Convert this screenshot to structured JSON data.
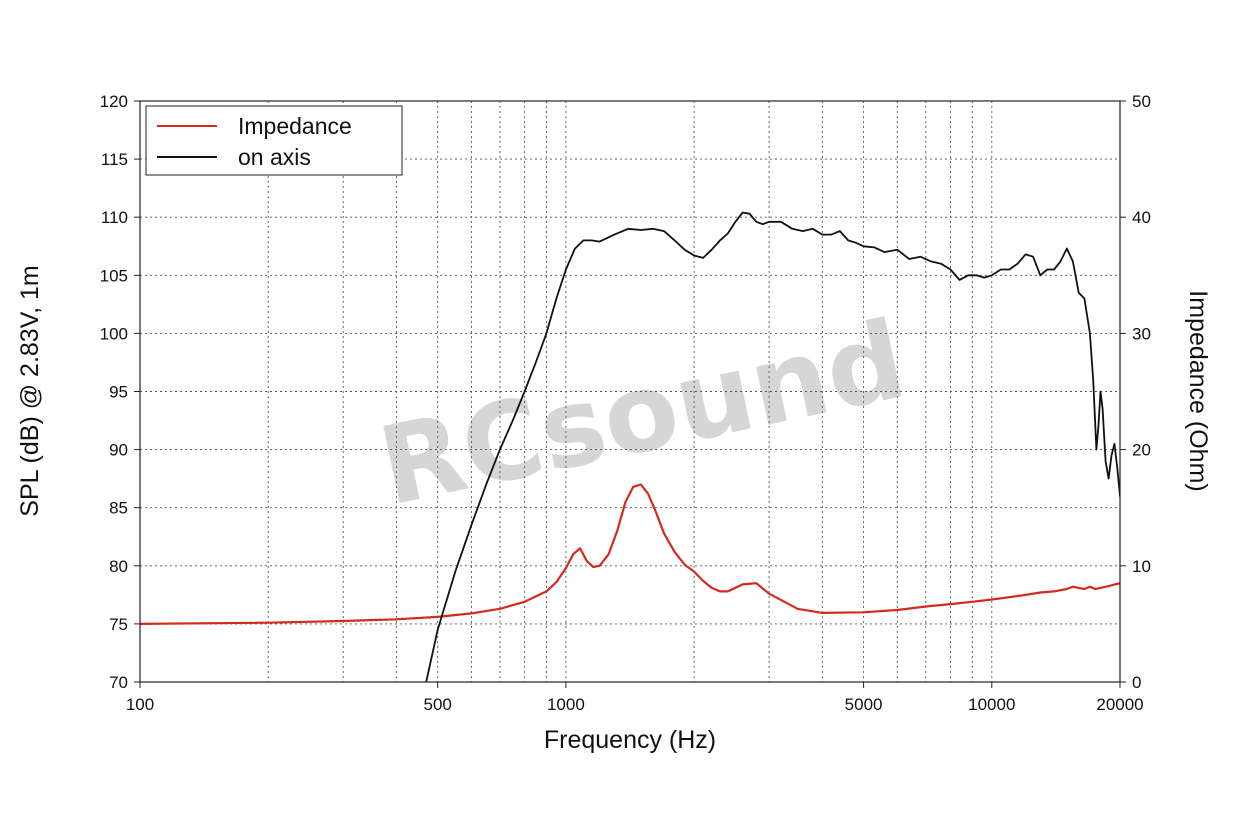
{
  "chart_data": {
    "type": "line",
    "xlabel": "Frequency (Hz)",
    "ylabel": "SPL (dB) @ 2.83V, 1m",
    "y2label": "Impedance (Ohm)",
    "x_scale": "log",
    "xlim": [
      100,
      20000
    ],
    "ylim": [
      70,
      120
    ],
    "y2lim": [
      0,
      50
    ],
    "x_ticks": [
      100,
      500,
      1000,
      5000,
      10000,
      20000
    ],
    "x_tick_labels": [
      "100",
      "500",
      "1000",
      "5000",
      "10000",
      "20000"
    ],
    "y_ticks": [
      70,
      75,
      80,
      85,
      90,
      95,
      100,
      105,
      110,
      115,
      120
    ],
    "y2_ticks": [
      0,
      10,
      20,
      30,
      40,
      50
    ],
    "grid": "dotted",
    "legend_position": "top-left",
    "watermark": "RCsound",
    "series": [
      {
        "name": "Impedance",
        "axis": "right",
        "color": "#d42a1e",
        "x": [
          100,
          200,
          300,
          400,
          500,
          600,
          700,
          800,
          900,
          950,
          1000,
          1040,
          1080,
          1120,
          1160,
          1200,
          1260,
          1320,
          1380,
          1440,
          1500,
          1560,
          1620,
          1700,
          1800,
          1900,
          2000,
          2100,
          2200,
          2300,
          2400,
          2500,
          2600,
          2800,
          3000,
          3500,
          4000,
          5000,
          6000,
          7000,
          8000,
          9000,
          10000,
          11000,
          12000,
          13000,
          14000,
          15000,
          15500,
          16000,
          16500,
          17000,
          17500,
          18000,
          19000,
          20000
        ],
        "y": [
          5.0,
          5.1,
          5.25,
          5.4,
          5.6,
          5.9,
          6.3,
          6.9,
          7.8,
          8.6,
          9.8,
          11.0,
          11.5,
          10.4,
          9.9,
          10.0,
          11.0,
          13.0,
          15.5,
          16.8,
          17.0,
          16.2,
          14.8,
          12.8,
          11.2,
          10.1,
          9.5,
          8.7,
          8.1,
          7.8,
          7.8,
          8.1,
          8.4,
          8.5,
          7.6,
          6.3,
          5.95,
          6.0,
          6.2,
          6.5,
          6.7,
          6.9,
          7.1,
          7.3,
          7.5,
          7.7,
          7.8,
          8.0,
          8.2,
          8.1,
          8.0,
          8.2,
          8.0,
          8.1,
          8.3,
          8.5
        ]
      },
      {
        "name": "on axis",
        "axis": "left",
        "color": "#111111",
        "x": [
          470,
          500,
          550,
          600,
          650,
          700,
          750,
          800,
          850,
          900,
          950,
          1000,
          1050,
          1100,
          1150,
          1200,
          1300,
          1400,
          1500,
          1600,
          1700,
          1800,
          1900,
          2000,
          2100,
          2200,
          2300,
          2400,
          2500,
          2600,
          2700,
          2800,
          2900,
          3000,
          3200,
          3400,
          3600,
          3800,
          4000,
          4200,
          4400,
          4600,
          4800,
          5000,
          5300,
          5600,
          6000,
          6400,
          6800,
          7200,
          7600,
          8000,
          8400,
          8800,
          9200,
          9600,
          10000,
          10500,
          11000,
          11500,
          12000,
          12500,
          13000,
          13500,
          14000,
          14500,
          15000,
          15500,
          16000,
          16500,
          17000,
          17300,
          17600,
          17800,
          18000,
          18200,
          18500,
          18800,
          19100,
          19400,
          19700,
          20000
        ],
        "y": [
          70.0,
          74.5,
          79.5,
          83.5,
          87.0,
          90.0,
          92.5,
          95.0,
          97.5,
          100.0,
          103.0,
          105.5,
          107.3,
          108.0,
          108.0,
          107.9,
          108.5,
          109.0,
          108.9,
          109.0,
          108.8,
          108.0,
          107.2,
          106.7,
          106.5,
          107.2,
          108.0,
          108.6,
          109.6,
          110.4,
          110.3,
          109.6,
          109.4,
          109.6,
          109.6,
          109.0,
          108.8,
          109.0,
          108.5,
          108.5,
          108.8,
          108.0,
          107.8,
          107.5,
          107.4,
          107.0,
          107.2,
          106.4,
          106.6,
          106.2,
          106.0,
          105.5,
          104.6,
          105.0,
          105.0,
          104.8,
          105.0,
          105.5,
          105.5,
          106.0,
          106.8,
          106.6,
          105.0,
          105.5,
          105.5,
          106.2,
          107.3,
          106.2,
          103.5,
          103.0,
          100.0,
          96.0,
          90.0,
          92.0,
          95.0,
          93.5,
          89.0,
          87.5,
          89.5,
          90.5,
          88.5,
          86.0
        ]
      }
    ]
  }
}
